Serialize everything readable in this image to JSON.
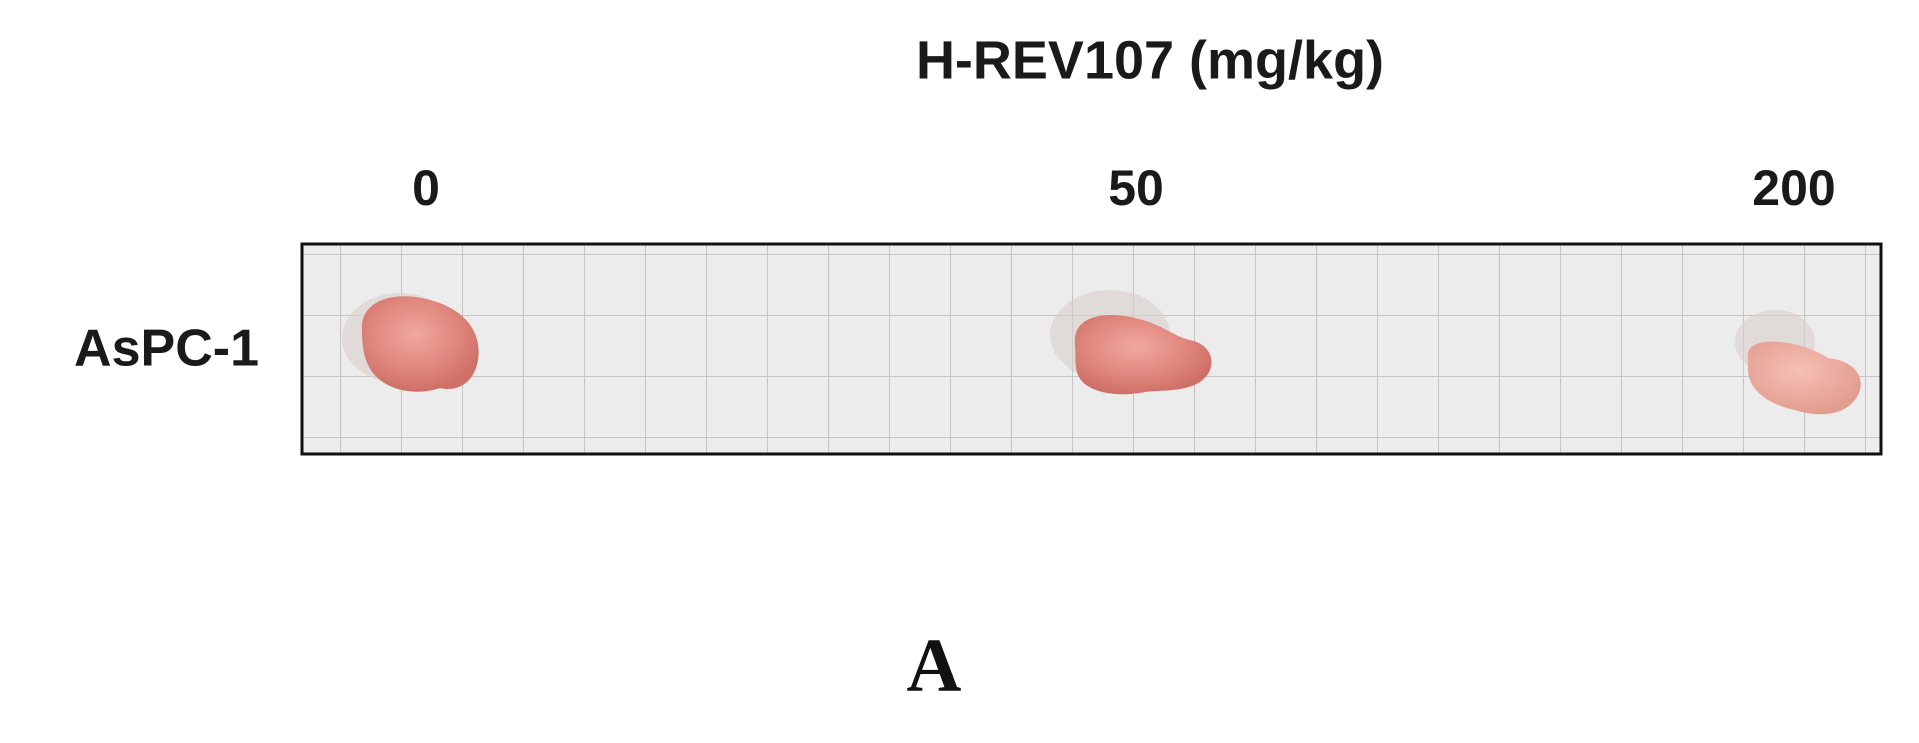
{
  "figure": {
    "title": "H-REV107 (mg/kg)",
    "doses": [
      "0",
      "50",
      "200"
    ],
    "row_label": "AsPC-1",
    "panel_label": "A"
  }
}
